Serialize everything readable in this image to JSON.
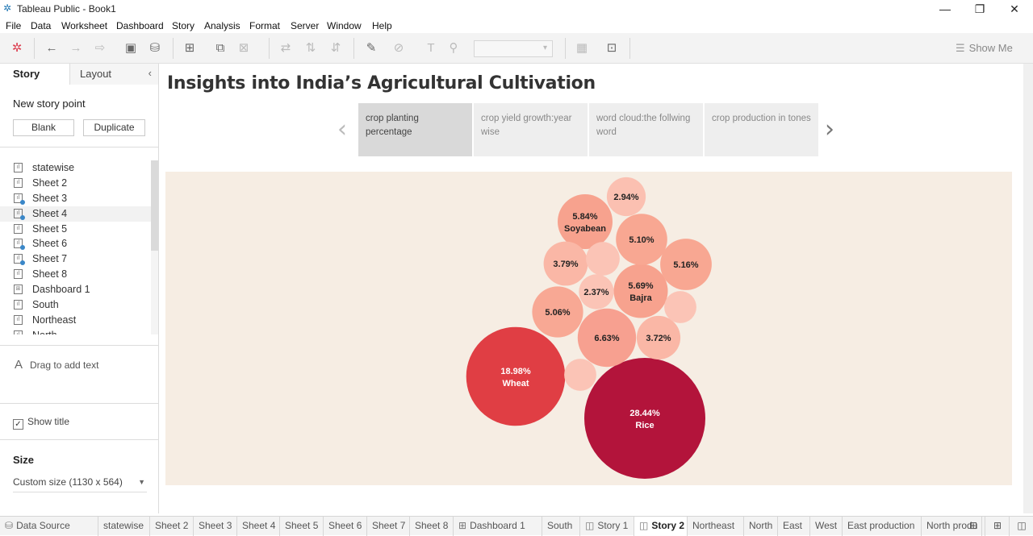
{
  "window": {
    "title": "Tableau Public - Book1"
  },
  "menu": [
    "File",
    "Data",
    "Worksheet",
    "Dashboard",
    "Story",
    "Analysis",
    "Format",
    "Server",
    "Window",
    "Help"
  ],
  "toolbar": {
    "show_me": "Show Me"
  },
  "sidebar": {
    "tabs": [
      "Story",
      "Layout"
    ],
    "new_story_point": "New story point",
    "blank": "Blank",
    "duplicate": "Duplicate",
    "sheets": [
      {
        "name": "statewise",
        "type": "sheet",
        "used": false
      },
      {
        "name": "Sheet 2",
        "type": "sheet",
        "used": false
      },
      {
        "name": "Sheet 3",
        "type": "sheet",
        "used": true
      },
      {
        "name": "Sheet 4",
        "type": "sheet",
        "used": true
      },
      {
        "name": "Sheet 5",
        "type": "sheet",
        "used": false
      },
      {
        "name": "Sheet 6",
        "type": "sheet",
        "used": true
      },
      {
        "name": "Sheet 7",
        "type": "sheet",
        "used": true
      },
      {
        "name": "Sheet 8",
        "type": "sheet",
        "used": false
      },
      {
        "name": "Dashboard 1",
        "type": "dashboard",
        "used": false
      },
      {
        "name": "South",
        "type": "sheet",
        "used": false
      },
      {
        "name": "Northeast",
        "type": "sheet",
        "used": false
      },
      {
        "name": "North",
        "type": "sheet",
        "used": false
      }
    ],
    "drag_text": "Drag to add text",
    "show_title": "Show title",
    "size_label": "Size",
    "size_value": "Custom size (1130 x 564)"
  },
  "story": {
    "title": "Insights into India’s Agricultural Cultivation",
    "points": [
      {
        "label": "crop planting percentage",
        "active": true
      },
      {
        "label": "crop yield growth:year wise",
        "active": false
      },
      {
        "label": "word cloud:the follwing word",
        "active": false
      },
      {
        "label": "crop production in tones",
        "active": false
      }
    ]
  },
  "chart_data": {
    "type": "packed-bubble",
    "title": "",
    "bubbles": [
      {
        "label": "28.44%",
        "crop": "Rice",
        "value": 28.44,
        "color": "#b3143b"
      },
      {
        "label": "18.98%",
        "crop": "Wheat",
        "value": 18.98,
        "color": "#e03e44"
      },
      {
        "label": "6.63%",
        "crop": "",
        "value": 6.63,
        "color": "#f7a090"
      },
      {
        "label": "5.84%",
        "crop": "Soyabean",
        "value": 5.84,
        "color": "#f7a28e"
      },
      {
        "label": "5.69%",
        "crop": "Bajra",
        "value": 5.69,
        "color": "#f7a28e"
      },
      {
        "label": "5.16%",
        "crop": "",
        "value": 5.16,
        "color": "#f8a792"
      },
      {
        "label": "5.10%",
        "crop": "",
        "value": 5.1,
        "color": "#f8a792"
      },
      {
        "label": "5.06%",
        "crop": "",
        "value": 5.06,
        "color": "#f8a894"
      },
      {
        "label": "3.79%",
        "crop": "",
        "value": 3.79,
        "color": "#fab7a6"
      },
      {
        "label": "3.72%",
        "crop": "",
        "value": 3.72,
        "color": "#fab7a6"
      },
      {
        "label": "2.94%",
        "crop": "",
        "value": 2.94,
        "color": "#fbc0b1"
      },
      {
        "label": "2.37%",
        "crop": "",
        "value": 2.37,
        "color": "#fbc4b6"
      },
      {
        "label": "",
        "crop": "",
        "value": 2.2,
        "color": "#fbc4b6"
      },
      {
        "label": "",
        "crop": "",
        "value": 2.0,
        "color": "#fbc4b6"
      },
      {
        "label": "",
        "crop": "",
        "value": 2.0,
        "color": "#fbc4b6"
      }
    ]
  },
  "bottom_tabs": [
    {
      "label": "Data Source",
      "icon": "database-icon",
      "active": false
    },
    {
      "label": "statewise",
      "icon": "",
      "active": false
    },
    {
      "label": "Sheet 2",
      "icon": "",
      "active": false
    },
    {
      "label": "Sheet 3",
      "icon": "",
      "active": false
    },
    {
      "label": "Sheet 4",
      "icon": "",
      "active": false
    },
    {
      "label": "Sheet 5",
      "icon": "",
      "active": false
    },
    {
      "label": "Sheet 6",
      "icon": "",
      "active": false
    },
    {
      "label": "Sheet 7",
      "icon": "",
      "active": false
    },
    {
      "label": "Sheet 8",
      "icon": "",
      "active": false
    },
    {
      "label": "Dashboard 1",
      "icon": "dashboard-icon",
      "active": false
    },
    {
      "label": "South",
      "icon": "",
      "active": false
    },
    {
      "label": "Story 1",
      "icon": "story-icon",
      "active": false
    },
    {
      "label": "Story 2",
      "icon": "story-icon",
      "active": true
    },
    {
      "label": "Northeast",
      "icon": "",
      "active": false
    },
    {
      "label": "North",
      "icon": "",
      "active": false
    },
    {
      "label": "East",
      "icon": "",
      "active": false
    },
    {
      "label": "West",
      "icon": "",
      "active": false
    },
    {
      "label": "East production",
      "icon": "",
      "active": false
    },
    {
      "label": "North produ",
      "icon": "",
      "active": false
    }
  ]
}
